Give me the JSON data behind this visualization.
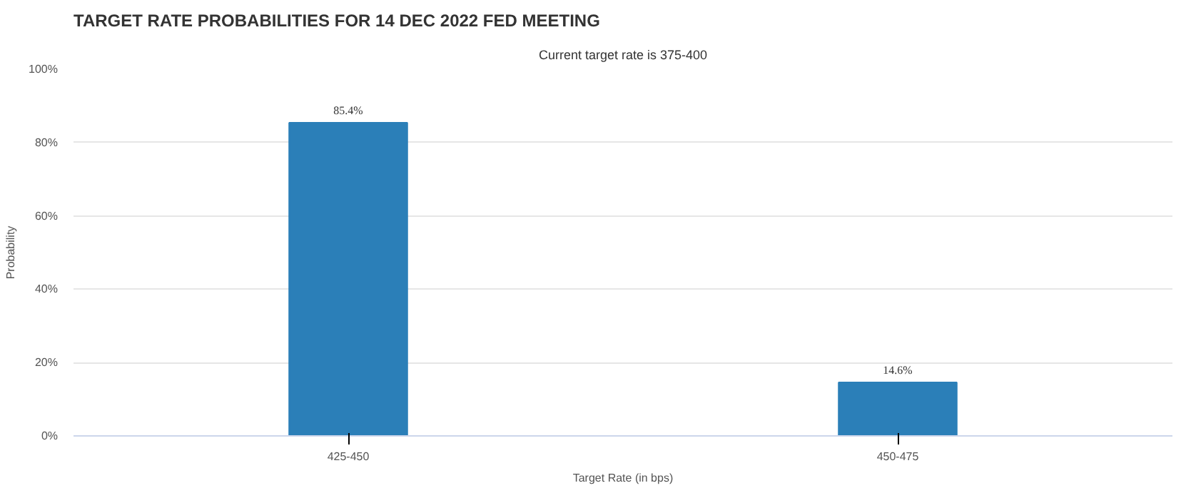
{
  "chart_data": {
    "type": "bar",
    "title": "TARGET RATE PROBABILITIES FOR 14 DEC 2022 FED MEETING",
    "subtitle": "Current target rate is 375-400",
    "xlabel": "Target Rate (in bps)",
    "ylabel": "Probability",
    "categories": [
      "425-450",
      "450-475"
    ],
    "values": [
      85.4,
      14.6
    ],
    "color": "#2b7fb8",
    "value_labels": [
      "85.4%",
      "14.6%"
    ],
    "ylim": [
      0,
      100
    ],
    "yticks": [
      {
        "value": 0,
        "label": "0%"
      },
      {
        "value": 20,
        "label": "20%"
      },
      {
        "value": 40,
        "label": "40%"
      },
      {
        "value": 60,
        "label": "60%"
      },
      {
        "value": 80,
        "label": "80%"
      },
      {
        "value": 100,
        "label": "100%"
      }
    ],
    "grid": "y"
  }
}
